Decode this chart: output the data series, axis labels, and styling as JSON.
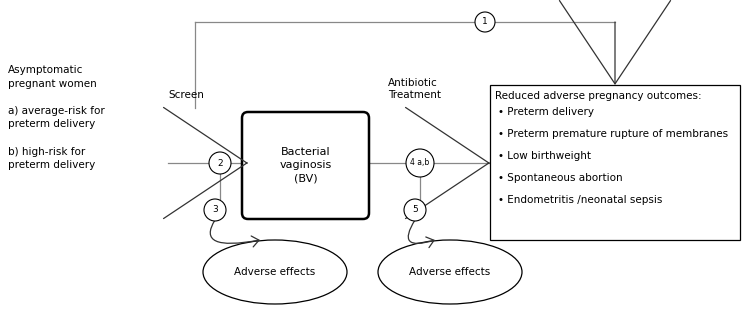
{
  "background_color": "#ffffff",
  "left_text": "Asymptomatic\npregnant women\n\na) average-risk for\npreterm delivery\n\nb) high-risk for\npreterm delivery",
  "screen_label": "Screen",
  "antibiotic_label": "Antibiotic\nTreatment",
  "bv_box_text": "Bacterial\nvaginosis\n(BV)",
  "outcomes_text_title": "Reduced adverse pregnancy outcomes:",
  "outcomes_bullets": [
    "Preterm delivery",
    "Preterm premature rupture of membranes",
    "Low birthweight",
    "Spontaneous abortion",
    "Endometritis /neonatal sepsis"
  ],
  "adverse_label": "Adverse effects",
  "circle_nums": [
    "1",
    "2",
    "3",
    "4 a,b",
    "5"
  ],
  "font_size": 7.5,
  "line_color": "#888888",
  "box_color": "#000000",
  "arrow_color": "#333333"
}
